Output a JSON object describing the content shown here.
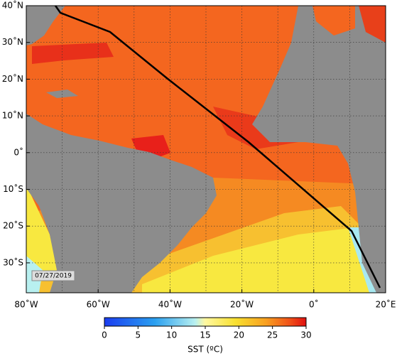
{
  "map": {
    "lat_labels": [
      "40˚N",
      "30˚N",
      "20˚N",
      "10˚N",
      "0˚",
      "10˚S",
      "20˚S",
      "30˚S"
    ],
    "lon_labels": [
      "80˚W",
      "60˚W",
      "40˚W",
      "20˚W",
      "0˚",
      "20˚E"
    ],
    "date": "07/27/2019"
  },
  "colorbar": {
    "label": "SST (ºC)",
    "ticks": [
      0,
      5,
      10,
      15,
      20,
      25,
      30
    ]
  }
}
